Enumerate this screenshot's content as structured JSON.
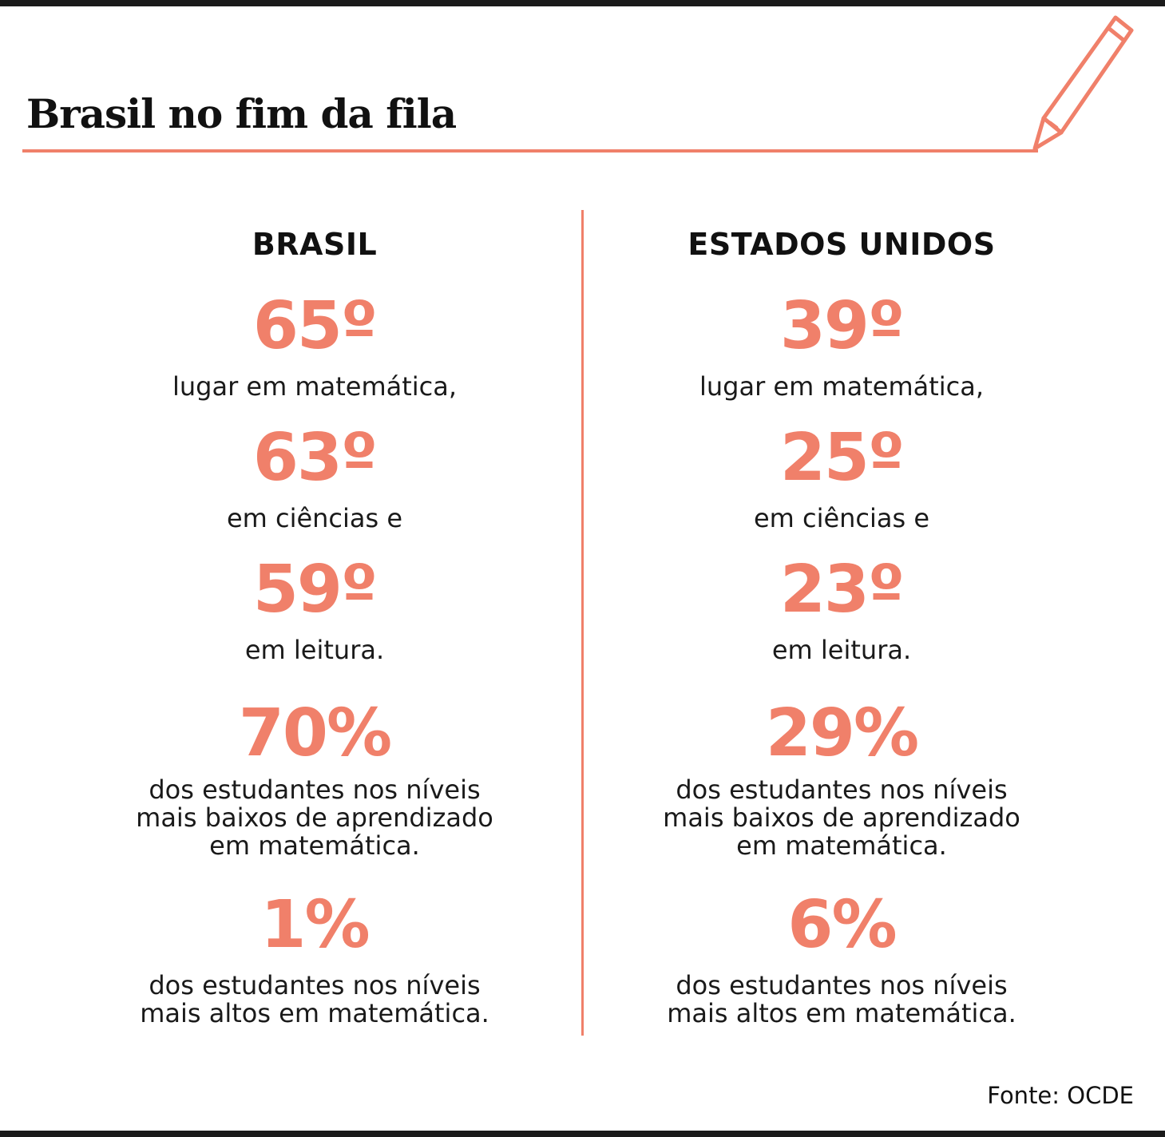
{
  "title": "Brasil no fim da fila",
  "brand_color": "#f0806a",
  "icon": "pencil-icon",
  "columns": [
    {
      "header": "BRASIL",
      "stats": [
        {
          "value": "65º",
          "label": "lugar em matemática,"
        },
        {
          "value": "63º",
          "label": "em ciências e"
        },
        {
          "value": "59º",
          "label": "em leitura."
        },
        {
          "value": "70%",
          "label": "dos estudantes nos níveis\nmais baixos de aprendizado\nem matemática."
        },
        {
          "value": "1%",
          "label": "dos estudantes nos níveis\nmais altos em matemática."
        }
      ]
    },
    {
      "header": "ESTADOS UNIDOS",
      "stats": [
        {
          "value": "39º",
          "label": "lugar em matemática,"
        },
        {
          "value": "25º",
          "label": "em ciências e"
        },
        {
          "value": "23º",
          "label": "em leitura."
        },
        {
          "value": "29%",
          "label": "dos estudantes nos níveis\nmais baixos de aprendizado\nem matemática."
        },
        {
          "value": "6%",
          "label": "dos estudantes nos níveis\nmais altos em matemática."
        }
      ]
    }
  ],
  "source": "Fonte: OCDE"
}
